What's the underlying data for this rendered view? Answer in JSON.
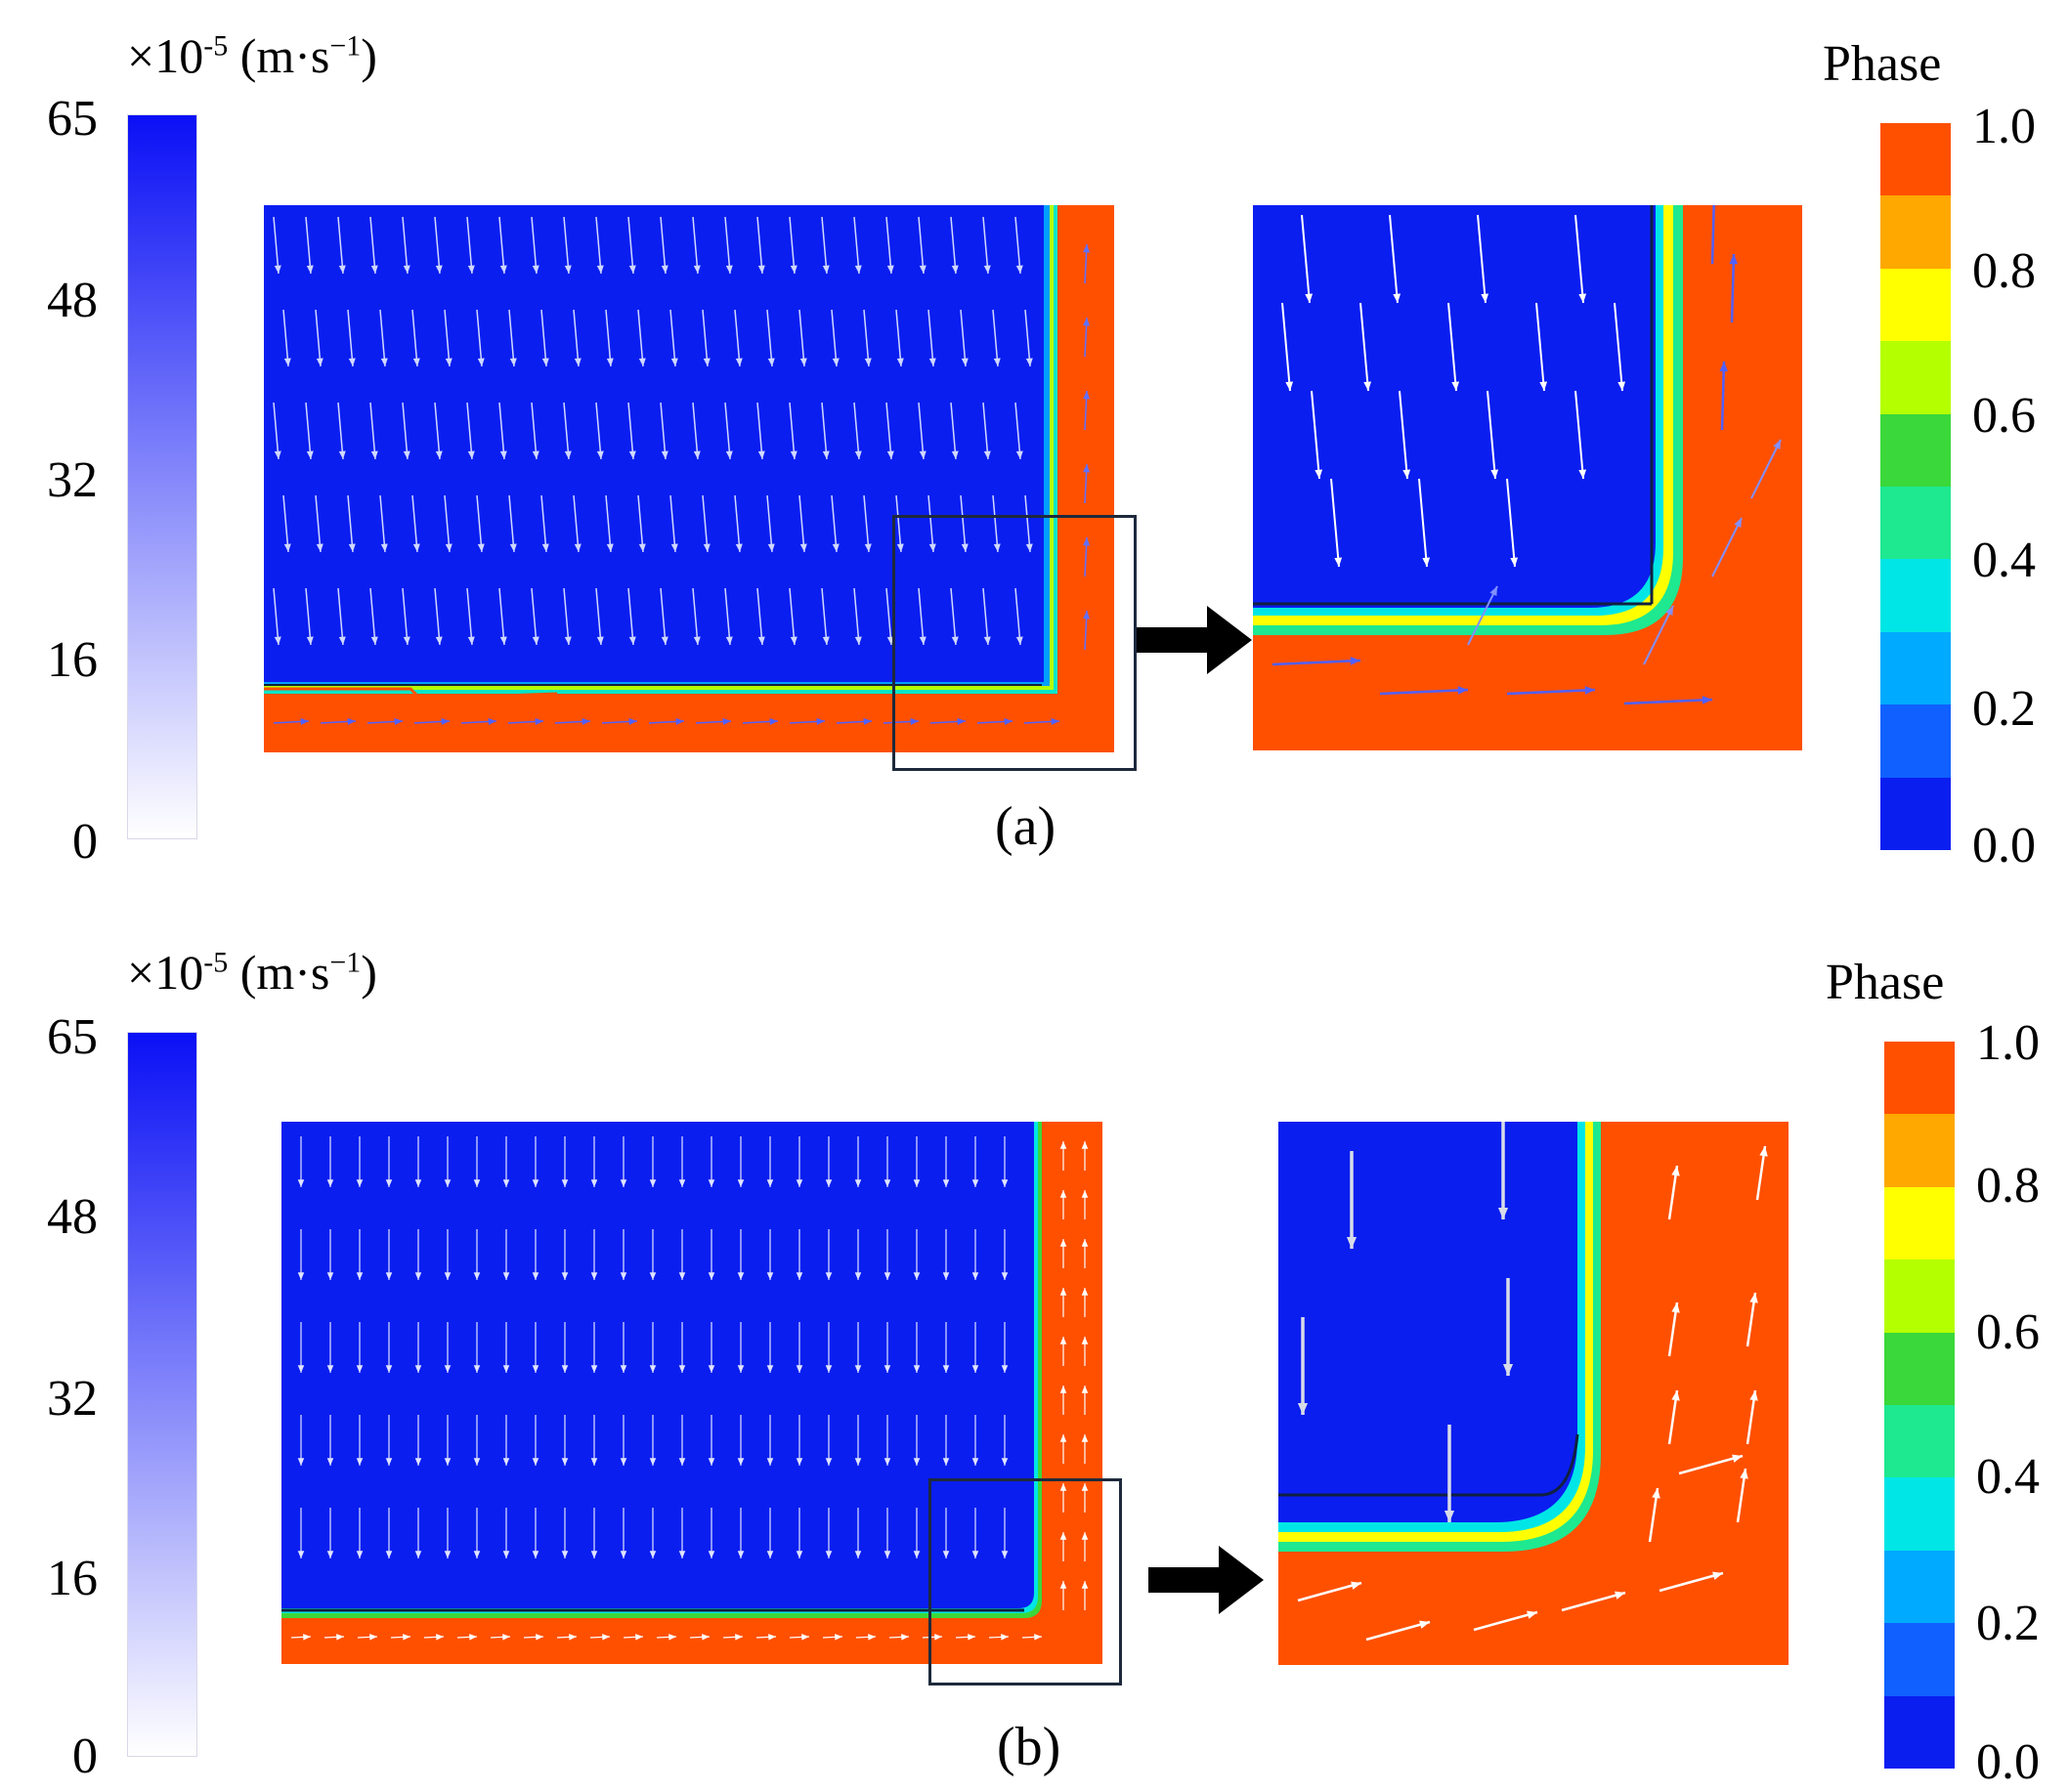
{
  "panels": [
    {
      "caption": "(a)",
      "velocity_legend": {
        "unit_prefix": "×10",
        "unit_exp": "-5",
        "unit_suffix": "(m·s",
        "unit_exp2": "−1",
        "unit_close": ")",
        "ticks": [
          "65",
          "48",
          "32",
          "16",
          "0"
        ]
      },
      "phase_legend": {
        "title": "Phase",
        "ticks": [
          "1.0",
          "0.8",
          "0.6",
          "0.4",
          "0.2",
          "0.0"
        ]
      }
    },
    {
      "caption": "(b)",
      "velocity_legend": {
        "unit_prefix": "×10",
        "unit_exp": "-5",
        "unit_suffix": "(m·s",
        "unit_exp2": "−1",
        "unit_close": ")",
        "ticks": [
          "65",
          "48",
          "32",
          "16",
          "0"
        ]
      },
      "phase_legend": {
        "title": "Phase",
        "ticks": [
          "1.0",
          "0.8",
          "0.6",
          "0.4",
          "0.2",
          "0.0"
        ]
      }
    }
  ],
  "colors": {
    "phase_scale": [
      "#ff5a00",
      "#ffa800",
      "#ffff00",
      "#b4ff00",
      "#3ad83a",
      "#1ee890",
      "#00e6e6",
      "#00aaff",
      "#1060ff",
      "#0028ff"
    ],
    "velocity_max": "#0a10f5",
    "velocity_min": "#ffffff",
    "water": "#0a1ef0",
    "oil": "#ff5000"
  }
}
